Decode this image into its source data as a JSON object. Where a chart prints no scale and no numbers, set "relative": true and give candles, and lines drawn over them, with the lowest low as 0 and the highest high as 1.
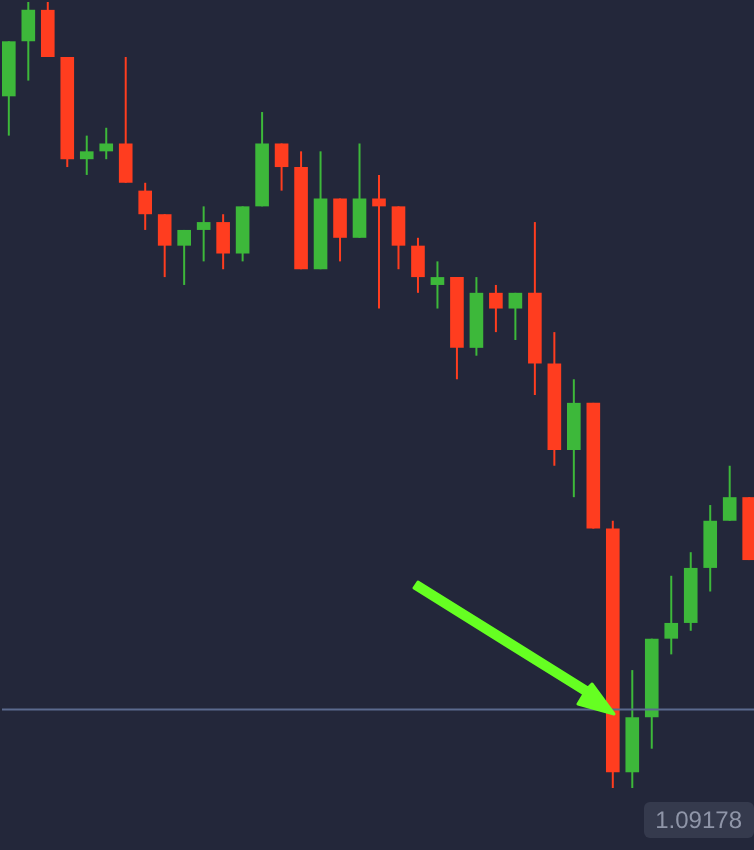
{
  "chart_data": {
    "type": "candlestick",
    "relative": true,
    "categories": [
      null,
      null,
      null,
      null,
      null,
      null,
      null,
      null,
      null,
      null,
      null,
      null,
      null,
      null,
      null,
      null,
      null,
      null,
      null,
      null,
      null,
      null,
      null,
      null,
      null,
      null,
      null,
      null,
      null,
      null,
      null,
      null,
      null,
      null,
      null,
      null,
      null,
      null,
      null
    ],
    "ohlc": [
      [
        0.88,
        0.95,
        0.83,
        0.95
      ],
      [
        0.95,
        1.0,
        0.9,
        0.99
      ],
      [
        0.99,
        1.0,
        0.93,
        0.93
      ],
      [
        0.93,
        0.93,
        0.79,
        0.8
      ],
      [
        0.8,
        0.83,
        0.78,
        0.81
      ],
      [
        0.81,
        0.84,
        0.8,
        0.82
      ],
      [
        0.82,
        0.93,
        0.77,
        0.77
      ],
      [
        0.76,
        0.77,
        0.71,
        0.73
      ],
      [
        0.73,
        0.73,
        0.65,
        0.69
      ],
      [
        0.69,
        0.71,
        0.64,
        0.71
      ],
      [
        0.71,
        0.74,
        0.67,
        0.72
      ],
      [
        0.72,
        0.73,
        0.66,
        0.68
      ],
      [
        0.68,
        0.74,
        0.67,
        0.74
      ],
      [
        0.74,
        0.86,
        0.74,
        0.82
      ],
      [
        0.82,
        0.82,
        0.76,
        0.79
      ],
      [
        0.79,
        0.81,
        0.66,
        0.66
      ],
      [
        0.66,
        0.81,
        0.66,
        0.75
      ],
      [
        0.75,
        0.75,
        0.67,
        0.7
      ],
      [
        0.7,
        0.82,
        0.7,
        0.75
      ],
      [
        0.75,
        0.78,
        0.61,
        0.74
      ],
      [
        0.74,
        0.74,
        0.66,
        0.69
      ],
      [
        0.69,
        0.7,
        0.63,
        0.65
      ],
      [
        0.64,
        0.67,
        0.61,
        0.65
      ],
      [
        0.65,
        0.65,
        0.52,
        0.56
      ],
      [
        0.56,
        0.65,
        0.55,
        0.63
      ],
      [
        0.63,
        0.64,
        0.58,
        0.61
      ],
      [
        0.61,
        0.63,
        0.57,
        0.63
      ],
      [
        0.63,
        0.72,
        0.5,
        0.54
      ],
      [
        0.54,
        0.58,
        0.41,
        0.43
      ],
      [
        0.43,
        0.52,
        0.37,
        0.49
      ],
      [
        0.49,
        0.49,
        0.33,
        0.33
      ],
      [
        0.33,
        0.34,
        0.0,
        0.02
      ],
      [
        0.02,
        0.15,
        0.0,
        0.09
      ],
      [
        0.09,
        0.19,
        0.05,
        0.19
      ],
      [
        0.19,
        0.27,
        0.17,
        0.21
      ],
      [
        0.21,
        0.3,
        0.2,
        0.28
      ],
      [
        0.28,
        0.36,
        0.25,
        0.34
      ],
      [
        0.34,
        0.41,
        0.34,
        0.37
      ],
      [
        0.37,
        0.37,
        0.29,
        0.29
      ]
    ],
    "colors": [
      "#3db83a",
      "#3db83a",
      "#ff3d1f",
      "#ff3d1f",
      "#3db83a",
      "#3db83a",
      "#ff3d1f",
      "#ff3d1f",
      "#ff3d1f",
      "#3db83a",
      "#3db83a",
      "#ff3d1f",
      "#3db83a",
      "#3db83a",
      "#ff3d1f",
      "#ff3d1f",
      "#3db83a",
      "#ff3d1f",
      "#3db83a",
      "#ff3d1f",
      "#ff3d1f",
      "#ff3d1f",
      "#3db83a",
      "#ff3d1f",
      "#3db83a",
      "#ff3d1f",
      "#3db83a",
      "#ff3d1f",
      "#ff3d1f",
      "#3db83a",
      "#ff3d1f",
      "#ff3d1f",
      "#3db83a",
      "#3db83a",
      "#3db83a",
      "#3db83a",
      "#3db83a",
      "#3db83a",
      "#ff3d1f"
    ],
    "ref_lines": [
      {
        "axis": "y",
        "value": 0.1,
        "color": "#5b6a8e"
      }
    ],
    "annotations": [
      "1.09178"
    ]
  }
}
